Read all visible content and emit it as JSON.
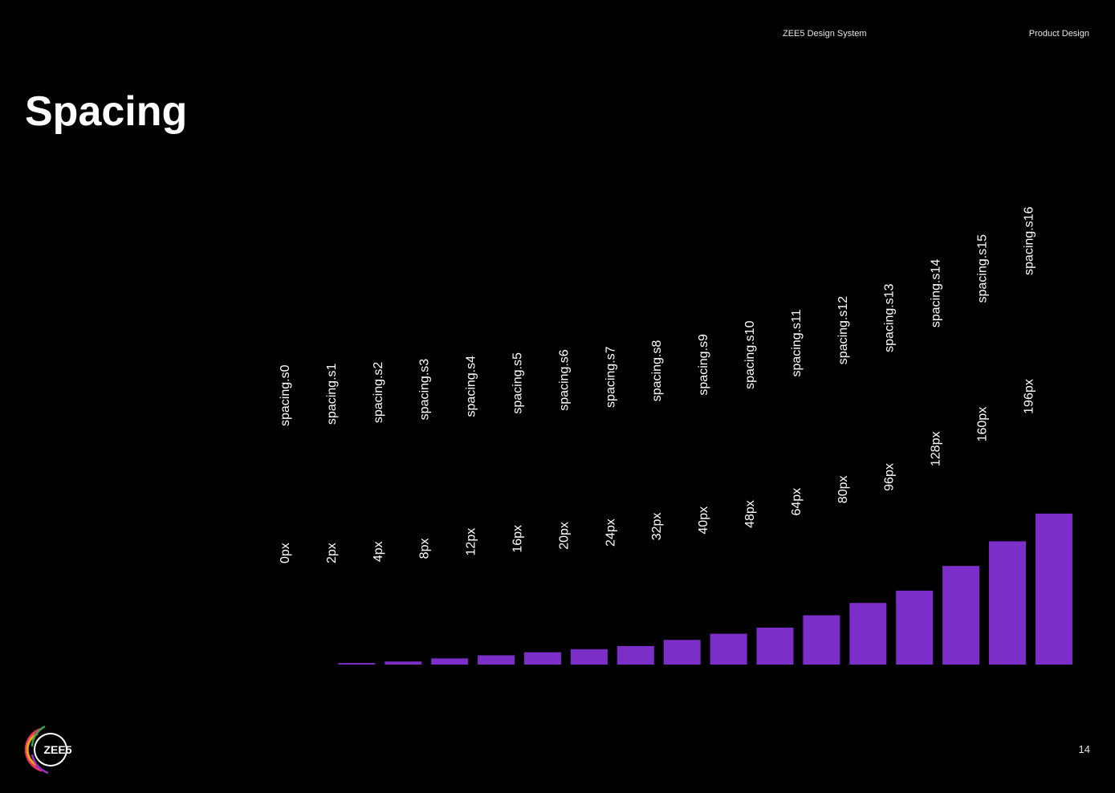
{
  "header": {
    "doc_title": "ZEE5 Design System",
    "section": "Product Design"
  },
  "title": "Spacing",
  "logo_text": "ZEE5",
  "page_number": "14",
  "colors": {
    "background": "#000000",
    "bar": "#7c2ec8",
    "text": "#ffffff"
  },
  "chart_data": {
    "type": "bar",
    "categories": [
      "spacing.s0",
      "spacing.s1",
      "spacing.s2",
      "spacing.s3",
      "spacing.s4",
      "spacing.s5",
      "spacing.s6",
      "spacing.s7",
      "spacing.s8",
      "spacing.s9",
      "spacing.s10",
      "spacing.s11",
      "spacing.s12",
      "spacing.s13",
      "spacing.s14",
      "spacing.s15",
      "spacing.s16"
    ],
    "values": [
      0,
      2,
      4,
      8,
      12,
      16,
      20,
      24,
      32,
      40,
      48,
      64,
      80,
      96,
      128,
      160,
      196
    ],
    "value_labels": [
      "0px",
      "2px",
      "4px",
      "8px",
      "12px",
      "16px",
      "20px",
      "24px",
      "32px",
      "40px",
      "48px",
      "64px",
      "80px",
      "96px",
      "128px",
      "160px",
      "196px"
    ],
    "unit": "px",
    "title": "Spacing",
    "xlabel": "",
    "ylabel": "",
    "ylim": [
      0,
      196
    ],
    "grid": false,
    "legend": "none"
  }
}
